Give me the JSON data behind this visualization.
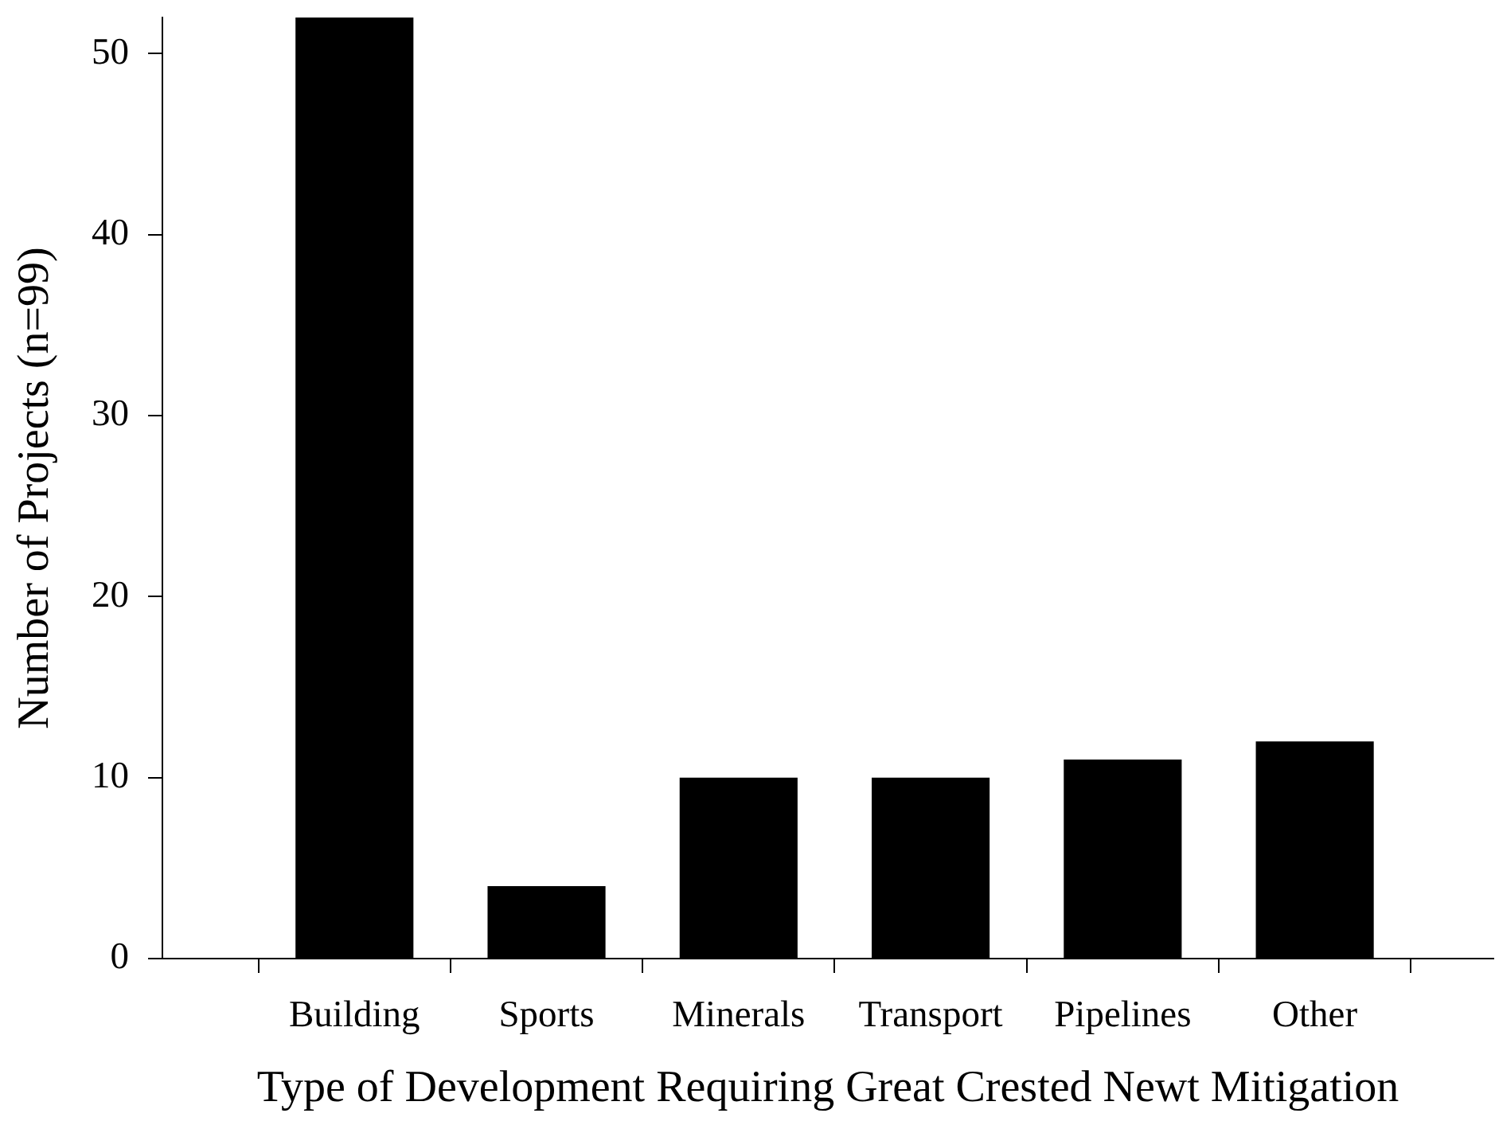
{
  "chart_data": {
    "type": "bar",
    "xlabel": "Type of Development Requiring Great Crested Newt Mitigation",
    "ylabel": "Number of Projects (n=99)",
    "categories": [
      "Building",
      "Sports",
      "Minerals",
      "Transport",
      "Pipelines",
      "Other"
    ],
    "values": [
      52,
      4,
      10,
      10,
      11,
      12
    ],
    "color": "#000000",
    "ylim": [
      0,
      52
    ],
    "yticks": [
      0,
      10,
      20,
      30,
      40,
      50
    ]
  }
}
